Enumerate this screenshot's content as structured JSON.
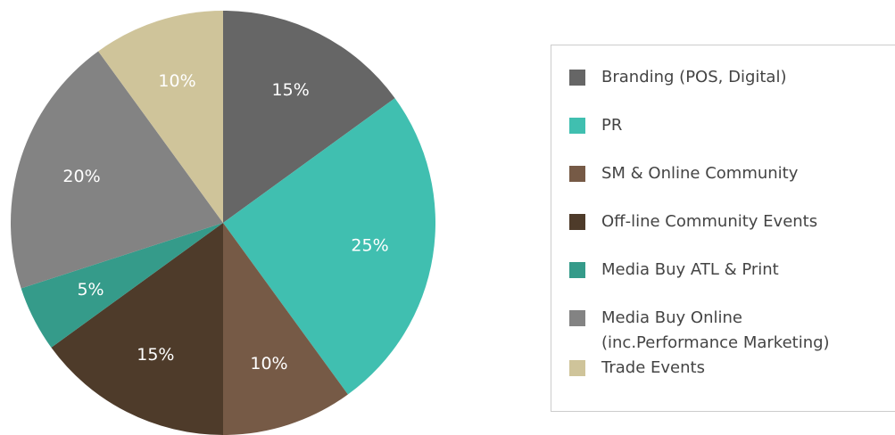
{
  "chart_data": {
    "type": "pie",
    "categories": [
      "Branding (POS, Digital)",
      "PR",
      "SM & Online Community",
      "Off-line Community Events",
      "Media Buy ATL & Print",
      "Media Buy Online\n(inc.Performance Marketing)",
      "Trade Events"
    ],
    "values": [
      15,
      25,
      10,
      15,
      5,
      20,
      10
    ],
    "value_labels": [
      "15%",
      "25%",
      "10%",
      "15%",
      "5%",
      "20%",
      "10%"
    ],
    "colors": [
      "#666666",
      "#40bfb0",
      "#765a46",
      "#4e3b2a",
      "#359b8a",
      "#838383",
      "#cfc49a"
    ],
    "legend": "right"
  }
}
